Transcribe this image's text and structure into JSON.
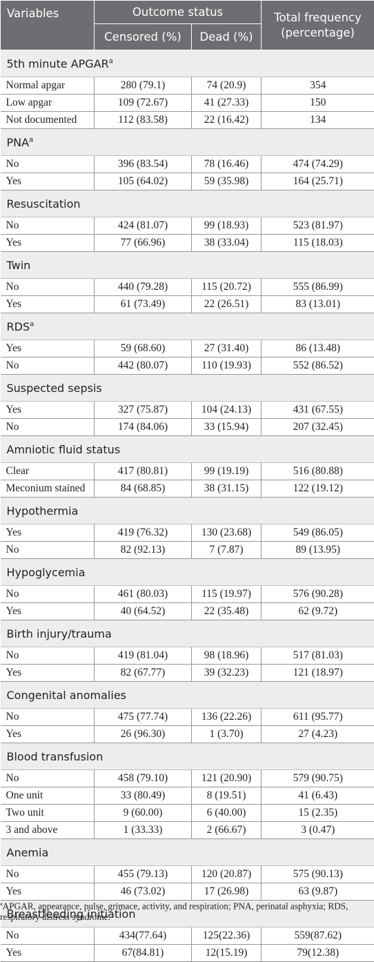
{
  "header": {
    "variables": "Variables",
    "outcome_status": "Outcome status",
    "total_frequency_line1": "Total frequency",
    "total_frequency_line2": "(percentage)",
    "censored": "Censored (%)",
    "dead": "Dead (%)"
  },
  "groups": [
    {
      "label": "5th minute APGAR",
      "sup": "a",
      "rows": [
        [
          "Normal apgar",
          "280 (79.1)",
          "74 (20.9)",
          "354"
        ],
        [
          "Low apgar",
          "109 (72.67)",
          "41 (27.33)",
          "150"
        ],
        [
          "Not documented",
          "112 (83.58)",
          "22 (16.42)",
          "134"
        ]
      ]
    },
    {
      "label": "PNA",
      "sup": "a",
      "rows": [
        [
          "No",
          "396 (83.54)",
          "78 (16.46)",
          "474 (74.29)"
        ],
        [
          "Yes",
          "105 (64.02)",
          "59 (35.98)",
          "164 (25.71)"
        ]
      ]
    },
    {
      "label": "Resuscitation",
      "sup": "",
      "rows": [
        [
          "No",
          "424 (81.07)",
          "99 (18.93)",
          "523 (81.97)"
        ],
        [
          "Yes",
          "77 (66.96)",
          "38 (33.04)",
          "115 (18.03)"
        ]
      ]
    },
    {
      "label": "Twin",
      "sup": "",
      "rows": [
        [
          "No",
          "440 (79.28)",
          "115 (20.72)",
          "555 (86.99)"
        ],
        [
          "Yes",
          "61 (73.49)",
          "22 (26.51)",
          "83 (13.01)"
        ]
      ]
    },
    {
      "label": "RDS",
      "sup": "a",
      "rows": [
        [
          "Yes",
          "59 (68.60)",
          "27 (31.40)",
          "86 (13.48)"
        ],
        [
          "No",
          "442 (80.07)",
          "110 (19.93)",
          "552 (86.52)"
        ]
      ]
    },
    {
      "label": "Suspected sepsis",
      "sup": "",
      "rows": [
        [
          "Yes",
          "327 (75.87)",
          "104 (24.13)",
          "431 (67.55)"
        ],
        [
          "No",
          "174 (84.06)",
          "33 (15.94)",
          "207 (32.45)"
        ]
      ]
    },
    {
      "label": "Amniotic fluid status",
      "sup": "",
      "rows": [
        [
          "Clear",
          "417 (80.81)",
          "99 (19.19)",
          "516 (80.88)"
        ],
        [
          "Meconium stained",
          "84 (68.85)",
          "38 (31.15)",
          "122 (19.12)"
        ]
      ]
    },
    {
      "label": "Hypothermia",
      "sup": "",
      "rows": [
        [
          "Yes",
          "419 (76.32)",
          "130 (23.68)",
          "549 (86.05)"
        ],
        [
          "No",
          "82 (92.13)",
          "7 (7.87)",
          "89 (13.95)"
        ]
      ]
    },
    {
      "label": "Hypoglycemia",
      "sup": "",
      "rows": [
        [
          "No",
          "461 (80.03)",
          "115 (19.97)",
          "576 (90.28)"
        ],
        [
          "Yes",
          "40 (64.52)",
          "22 (35.48)",
          "62 (9.72)"
        ]
      ]
    },
    {
      "label": "Birth injury/trauma",
      "sup": "",
      "rows": [
        [
          "No",
          "419 (81.04)",
          "98 (18.96)",
          "517 (81.03)"
        ],
        [
          "Yes",
          "82 (67.77)",
          "39 (32.23)",
          "121 (18.97)"
        ]
      ]
    },
    {
      "label": "Congenital anomalies",
      "sup": "",
      "rows": [
        [
          "No",
          "475 (77.74)",
          "136 (22.26)",
          "611 (95.77)"
        ],
        [
          "Yes",
          "26 (96.30)",
          "1 (3.70)",
          "27 (4.23)"
        ]
      ]
    },
    {
      "label": "Blood transfusion",
      "sup": "",
      "rows": [
        [
          "No",
          "458 (79.10)",
          "121 (20.90)",
          "579 (90.75)"
        ],
        [
          "One unit",
          "33 (80.49)",
          "8 (19.51)",
          "41 (6.43)"
        ],
        [
          "Two unit",
          "9 (60.00)",
          "6 (40.00)",
          "15 (2.35)"
        ],
        [
          "3 and above",
          "1 (33.33)",
          "2 (66.67)",
          "3 (0.47)"
        ]
      ]
    },
    {
      "label": "Anemia",
      "sup": "",
      "rows": [
        [
          "No",
          "455 (79.13)",
          "120 (20.87)",
          "575 (90.13)"
        ],
        [
          "Yes",
          "46 (73.02)",
          "17 (26.98)",
          "63 (9.87)"
        ]
      ]
    },
    {
      "label": "Breastfeeding initiation",
      "sup": "",
      "rows": [
        [
          "No",
          "434(77.64)",
          "125(22.36)",
          "559(87.62)"
        ],
        [
          "Yes",
          "67(84.81)",
          "12(15.19)",
          "79(12.38)"
        ]
      ]
    }
  ],
  "footnote": {
    "sup": "a",
    "text": "APGAR, appearance, pulse, grimace, activity, and respiration; PNA, perinatal asphyxia; RDS, respiratory distress syndrome."
  }
}
